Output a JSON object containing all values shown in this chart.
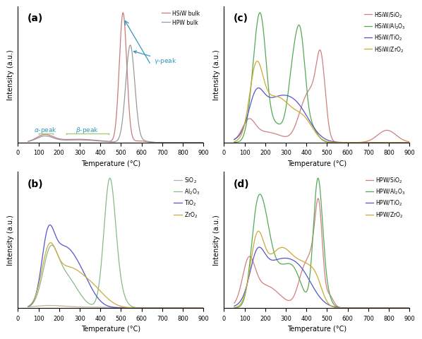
{
  "panel_labels": [
    "(a)",
    "(b)",
    "(c)",
    "(d)"
  ],
  "xlabel": "Temperature (°C)",
  "ylabel": "Intensity (a.u.)",
  "xlim": [
    0,
    900
  ],
  "colors": {
    "HSiW_bulk": "#c97b7b",
    "HPW_bulk": "#999999",
    "SiO2": "#c0b0a0",
    "Al2O3": "#88bb88",
    "TiO2": "#5555cc",
    "ZrO2": "#ccaa44",
    "HSiW_SiO2": "#d08080",
    "HSiW_Al2O3": "#55aa55",
    "HSiW_TiO2": "#5555cc",
    "HSiW_ZrO2": "#ccaa33",
    "HPW_SiO2": "#d08080",
    "HPW_Al2O3": "#55aa55",
    "HPW_TiO2": "#5555cc",
    "HPW_ZrO2": "#ccaa33"
  },
  "annotation_color": "#3399bb",
  "bracket_color": "#aacc77"
}
